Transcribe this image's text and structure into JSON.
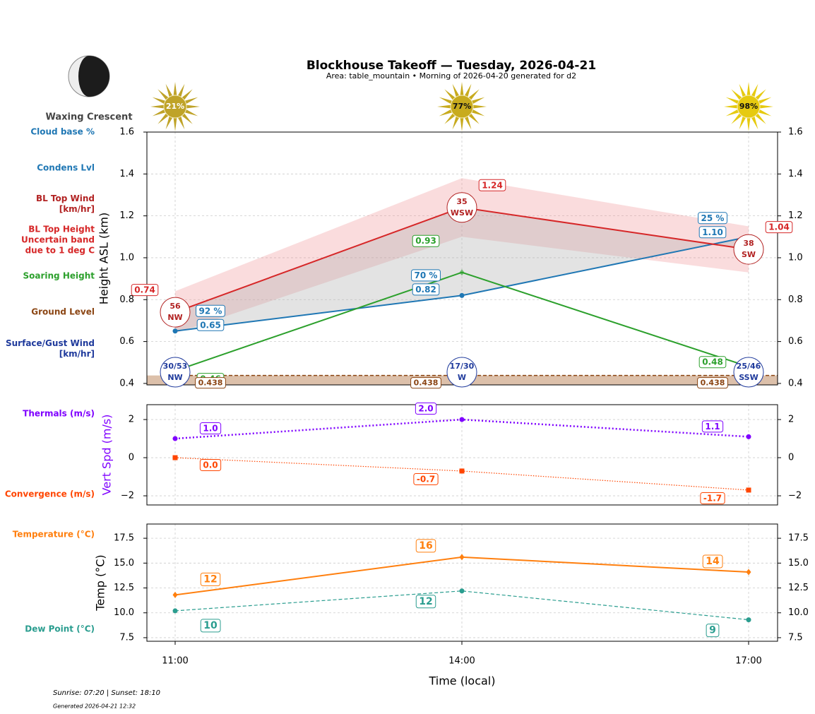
{
  "title": "Blockhouse Takeoff — Tuesday, 2026-04-21",
  "subtitle": "Area: table_mountain • Morning of 2026-04-20 generated for d2",
  "moon": {
    "phase": "Waxing Crescent"
  },
  "sunshine": {
    "values": [
      21,
      77,
      98
    ],
    "value_labels": [
      "21%",
      "77%",
      "98%"
    ],
    "colors": [
      "#bfa328",
      "#c8ab1e",
      "#e6ca10"
    ]
  },
  "footer": {
    "sun_times": "Sunrise: 07:20 | Sunset: 18:10",
    "generated": "Generated 2026-04-21 12:32"
  },
  "chart_data": [
    {
      "type": "line",
      "ylabel": "Height ASL (km)",
      "ylim": [
        0.393,
        1.6
      ],
      "yticks": [
        0.4,
        0.6,
        0.8,
        {
          "value": 1,
          "label": "1.0"
        },
        1.2,
        1.4,
        1.6
      ],
      "grid": true,
      "series": [
        {
          "name": "Cloud base %",
          "type": "labels",
          "color": "#1f77b4",
          "values": [
            92,
            70,
            25
          ],
          "value_labels": [
            "92 %",
            "70 %",
            "25 %"
          ]
        },
        {
          "name": "Condens Lvl",
          "type": "line",
          "color": "#1f77b4",
          "marker": "circle",
          "values": [
            0.65,
            0.82,
            1.1
          ],
          "value_labels": [
            "0.65",
            "0.82",
            "1.10"
          ]
        },
        {
          "name": "BL Top Wind\n[km/hr]",
          "type": "wind",
          "color": "#b22222",
          "values": [
            56,
            35,
            38
          ],
          "directions": [
            "NW",
            "WSW",
            "SW"
          ]
        },
        {
          "name": "BL Top Height\nUncertain band\ndue to 1 deg C",
          "type": "line",
          "color": "#d62728",
          "values": [
            0.74,
            1.24,
            1.04
          ],
          "band_upper": [
            0.84,
            1.38,
            1.15
          ],
          "band_lower": [
            0.64,
            1.1,
            0.93
          ],
          "band_color": "#f08a90"
        },
        {
          "name": "Soaring Height",
          "type": "line",
          "color": "#2ca02c",
          "marker": "diamond",
          "values": [
            0.46,
            0.93,
            0.48
          ]
        },
        {
          "name": "Ground Level",
          "type": "ground",
          "color": "#8b4513",
          "linestyle": "dashed",
          "values": [
            0.438,
            0.438,
            0.438
          ],
          "fill_color": "#dcc0aa"
        },
        {
          "name": "Surface/Gust Wind\n[km/hr]",
          "type": "wind_surface",
          "color": "#1f3a9c",
          "labels": [
            "30/53",
            "17/30",
            "25/46"
          ],
          "directions": [
            "NW",
            "W",
            "SSW"
          ]
        }
      ]
    },
    {
      "type": "line",
      "ylabel": "Vert Spd (m/s)",
      "ylabel_color": "#7f00ff",
      "ylim": [
        -2.48,
        2.78
      ],
      "yticks": [
        {
          "value": -2,
          "label": "−2"
        },
        0,
        2
      ],
      "grid": true,
      "series": [
        {
          "name": "Thermals (m/s)",
          "type": "line",
          "color": "#7f00ff",
          "marker": "circle",
          "linestyle": "dotted",
          "linewidth": 2.5,
          "values": [
            1.0,
            2.0,
            1.1
          ],
          "value_labels": [
            "1.0",
            "2.0",
            "1.1"
          ]
        },
        {
          "name": "Convergence (m/s)",
          "type": "line",
          "color": "#ff4500",
          "marker": "square",
          "linestyle": "dotted",
          "linewidth": 1.2,
          "values": [
            0.0,
            -0.7,
            -1.7
          ],
          "value_labels": [
            "0.0",
            "-0.7",
            "-1.7"
          ]
        }
      ]
    },
    {
      "type": "line",
      "ylabel": "Temp (°C)",
      "xlabel": "Time (local)",
      "categories": [
        "11:00",
        "14:00",
        "17:00"
      ],
      "ylim": [
        7.14,
        18.93
      ],
      "yticks": [
        7.5,
        {
          "value": 10,
          "label": "10.0"
        },
        12.5,
        {
          "value": 15,
          "label": "15.0"
        },
        17.5
      ],
      "grid": true,
      "series": [
        {
          "name": "Temperature (°C)",
          "type": "line",
          "color": "#ff7f0e",
          "marker": "diamond",
          "values": [
            11.8,
            15.6,
            14.1
          ],
          "value_labels": [
            "12",
            "16",
            "14"
          ]
        },
        {
          "name": "Dew Point (°C)",
          "type": "line",
          "color": "#2a9d8f",
          "marker": "circle",
          "linestyle": "dashed",
          "linewidth": 1.2,
          "values": [
            10.2,
            12.2,
            9.3
          ],
          "value_labels": [
            "10",
            "12",
            "9"
          ]
        }
      ]
    }
  ]
}
